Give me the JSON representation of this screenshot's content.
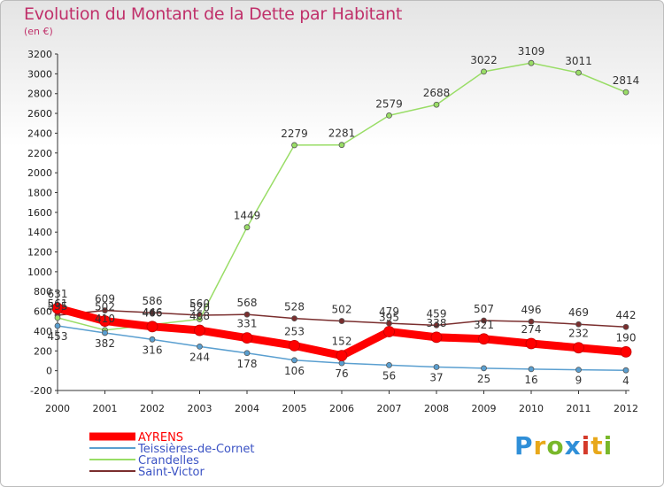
{
  "title": "Evolution du Montant de la Dette par Habitant",
  "subtitle": "(en €)",
  "logo": [
    "P",
    "r",
    "o",
    "x",
    "i",
    "t",
    "i"
  ],
  "chart_data": {
    "type": "line",
    "x": [
      "2000",
      "2001",
      "2002",
      "2003",
      "2004",
      "2005",
      "2006",
      "2007",
      "2008",
      "2009",
      "2010",
      "2011",
      "2012"
    ],
    "ylim": [
      -200,
      3200
    ],
    "yticks": [
      -200,
      0,
      200,
      400,
      600,
      800,
      1000,
      1200,
      1400,
      1600,
      1800,
      2000,
      2200,
      2400,
      2600,
      2800,
      3000,
      3200
    ],
    "grid": false,
    "legend": "bottom-left",
    "series": [
      {
        "name": "Saint-Victor",
        "color": "#7a2e2e",
        "width": 1.5,
        "values": [
          561,
          609,
          586,
          560,
          568,
          528,
          502,
          479,
          459,
          507,
          496,
          469,
          442
        ]
      },
      {
        "name": "Crandelles",
        "color": "#99dd66",
        "width": 1.5,
        "values": [
          535,
          410,
          466,
          520,
          1449,
          2279,
          2281,
          2579,
          2688,
          3022,
          3109,
          3011,
          2814
        ]
      },
      {
        "name": "Teissières-de-Cornet",
        "color": "#5a9fd0",
        "width": 1.5,
        "values": [
          453,
          382,
          316,
          244,
          178,
          106,
          76,
          56,
          37,
          25,
          16,
          9,
          4
        ]
      },
      {
        "name": "AYRENS",
        "color": "#ff0000",
        "width": 9,
        "values": [
          631,
          502,
          446,
          408,
          331,
          253,
          152,
          395,
          338,
          321,
          274,
          232,
          190
        ]
      }
    ],
    "legend_order": [
      "AYRENS",
      "Teissières-de-Cornet",
      "Crandelles",
      "Saint-Victor"
    ]
  }
}
